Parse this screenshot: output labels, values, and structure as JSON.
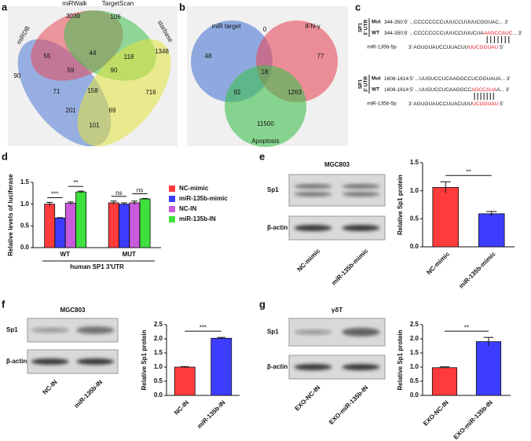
{
  "panel_labels": [
    "a",
    "b",
    "c",
    "d",
    "e",
    "f",
    "g"
  ],
  "venn_a": {
    "sets": [
      "miRDB",
      "miRWalk",
      "TargetScan",
      "starbase"
    ],
    "counts": [
      3039,
      106,
      1348,
      90,
      55,
      44,
      118,
      59,
      90,
      716,
      71,
      158,
      69,
      201,
      101
    ]
  },
  "venn_b": {
    "sets": [
      "miR target",
      "IFN-γ",
      "Apoptosis"
    ],
    "counts": [
      48,
      0,
      77,
      18,
      92,
      1263,
      11500
    ]
  },
  "sequences": {
    "side_label": [
      "SP1",
      "3' UTR"
    ],
    "blocks": [
      {
        "rows": [
          {
            "tag": "Mut",
            "position": "344-350:5'",
            "sequence": [
              "...CCCCCCCCUUUCCUUUUCGGUAC... 3'"
            ]
          },
          {
            "tag": "WT",
            "position": "344-350:5'",
            "sequence": [
              "...CCCCCCCCUUUCCUUUCUA",
              "AAGCCAUC",
              "... 3'"
            ]
          },
          {
            "tag": "miR-135b-5p",
            "sequence": [
              "3' AGUGUAUCCUUACUU",
              "UUCGGUAU",
              " 5'"
            ]
          }
        ]
      },
      {
        "rows": [
          {
            "tag": "Mut",
            "position": "1608-1614:5'",
            "sequence": [
              "...UUGUCCUCAAGGCCUCGGUAUA... 3'"
            ]
          },
          {
            "tag": "WT",
            "position": "1608-1614:5'",
            "sequence": [
              "...UUGUCCUCAAGGCC",
              "AGCCAUA",
              "A... 3'"
            ]
          },
          {
            "tag": "miR-135b-5p",
            "sequence": [
              "3' AGUGUAUCCUUACUUU",
              "UCGGUAU",
              " 5'"
            ]
          }
        ]
      }
    ]
  },
  "blots": [
    {
      "title": "MGC803",
      "rows": [
        "Sp1",
        "β-actin"
      ],
      "lanes": [
        "NC-mimic",
        "miR-135b-mimic"
      ]
    },
    {
      "title": "MGC803",
      "rows": [
        "Sp1",
        "β-actin"
      ],
      "lanes": [
        "NC-IN",
        "miR-135b-IN"
      ]
    },
    {
      "title": "γδT",
      "rows": [
        "Sp1",
        "β-actin"
      ],
      "lanes": [
        "EXO-NC-IN",
        "EXO-miR-135b-IN"
      ]
    }
  ],
  "chart_data": [
    {
      "type": "bar",
      "y_label": "Relative levels of luciferase",
      "x_label": "human SP1 3'UTR",
      "categories": [
        "WT",
        "MUT"
      ],
      "series": [
        {
          "name": "NC-mimic",
          "color": "#ff3b3b",
          "values": [
            1.0,
            1.03
          ],
          "errors": [
            0.04,
            0.04
          ]
        },
        {
          "name": "miR-135b-mimic",
          "color": "#3d3dff",
          "values": [
            0.68,
            1.0
          ],
          "errors": [
            0.01,
            0.03
          ]
        },
        {
          "name": "NC-IN",
          "color": "#c95bdc",
          "values": [
            1.02,
            1.03
          ],
          "errors": [
            0.03,
            0.04
          ]
        },
        {
          "name": "miR-135b-IN",
          "color": "#3ee03e",
          "values": [
            1.28,
            1.12
          ],
          "errors": [
            0.02,
            0.01
          ]
        }
      ],
      "significance": [
        "***",
        "**",
        "ns",
        "ns"
      ],
      "ylim": [
        0,
        1.5
      ],
      "yticks": [
        {
          "value": 0,
          "label": "0.0"
        },
        {
          "value": 0.5,
          "label": "0.5"
        },
        {
          "value": 1,
          "label": "1.0"
        },
        {
          "value": 1.5,
          "label": "1.5"
        }
      ]
    },
    {
      "type": "bar",
      "y_label": "Relative Sp1 protein",
      "categories": [
        "NC-mimic",
        "miR-135b-mimic"
      ],
      "values": [
        1.06,
        0.59
      ],
      "errors": [
        0.1,
        0.04
      ],
      "colors": [
        "#ff3b3b",
        "#3d3dff"
      ],
      "significance": [
        "**"
      ],
      "ylim": [
        0,
        1.5
      ],
      "yticks": [
        {
          "value": 0,
          "label": "0.0"
        },
        {
          "value": 0.5,
          "label": "0.5"
        },
        {
          "value": 1,
          "label": "1.0"
        },
        {
          "value": 1.5,
          "label": "1.5"
        }
      ]
    },
    {
      "type": "bar",
      "y_label": "Relative Sp1 protein",
      "categories": [
        "NC-IN",
        "miR-135b-IN"
      ],
      "values": [
        1.0,
        2.02
      ],
      "errors": [
        0.02,
        0.03
      ],
      "colors": [
        "#ff3b3b",
        "#3d3dff"
      ],
      "significance": [
        "***"
      ],
      "ylim": [
        0,
        2.5
      ],
      "yticks": [
        {
          "value": 0,
          "label": "0.0"
        },
        {
          "value": 0.5,
          "label": "0.5"
        },
        {
          "value": 1,
          "label": "1.0"
        },
        {
          "value": 1.5,
          "label": "1.5"
        },
        {
          "value": 2,
          "label": "2.0"
        },
        {
          "value": 2.5,
          "label": "2.5"
        }
      ]
    },
    {
      "type": "bar",
      "y_label": "Relative Sp1 protein",
      "categories": [
        "EXO-NC-IN",
        "EXO-miR-135b-IN"
      ],
      "values": [
        0.98,
        1.9
      ],
      "errors": [
        0.03,
        0.15
      ],
      "colors": [
        "#ff3b3b",
        "#3d3dff"
      ],
      "significance": [
        "**"
      ],
      "ylim": [
        0,
        2.5
      ],
      "yticks": [
        {
          "value": 0,
          "label": "0.0"
        },
        {
          "value": 0.5,
          "label": "0.5"
        },
        {
          "value": 1,
          "label": "1.0"
        },
        {
          "value": 1.5,
          "label": "1.5"
        },
        {
          "value": 2,
          "label": "2.0"
        },
        {
          "value": 2.5,
          "label": "2.5"
        }
      ]
    }
  ]
}
